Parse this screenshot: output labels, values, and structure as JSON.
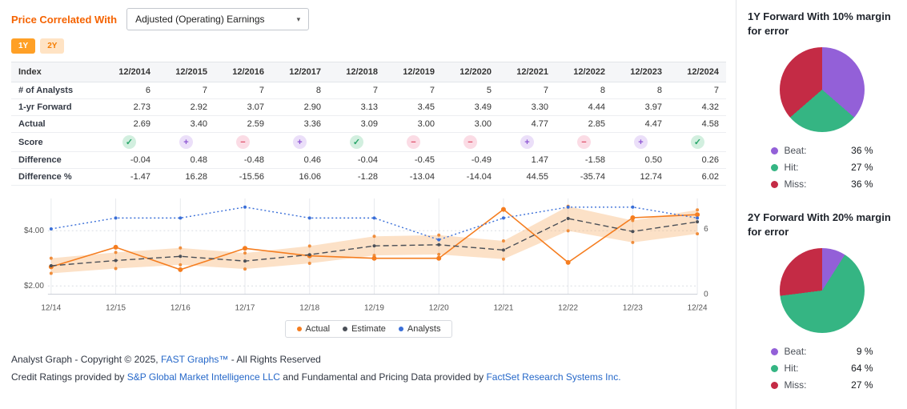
{
  "header": {
    "label": "Price Correlated With",
    "dropdown_value": "Adjusted (Operating) Earnings",
    "toggles": [
      {
        "label": "1Y",
        "active": true
      },
      {
        "label": "2Y",
        "active": false
      }
    ],
    "accent_color": "#f56301"
  },
  "table": {
    "index_header": "Index",
    "years": [
      "12/2014",
      "12/2015",
      "12/2016",
      "12/2017",
      "12/2018",
      "12/2019",
      "12/2020",
      "12/2021",
      "12/2022",
      "12/2023",
      "12/2024"
    ],
    "rows": {
      "analysts": {
        "label": "# of Analysts",
        "values": [
          "6",
          "7",
          "7",
          "8",
          "7",
          "7",
          "5",
          "7",
          "8",
          "8",
          "7"
        ]
      },
      "forward": {
        "label": "1-yr Forward",
        "values": [
          "2.73",
          "2.92",
          "3.07",
          "2.90",
          "3.13",
          "3.45",
          "3.49",
          "3.30",
          "4.44",
          "3.97",
          "4.32"
        ]
      },
      "actual": {
        "label": "Actual",
        "values": [
          "2.69",
          "3.40",
          "2.59",
          "3.36",
          "3.09",
          "3.00",
          "3.00",
          "4.77",
          "2.85",
          "4.47",
          "4.58"
        ]
      },
      "score": {
        "label": "Score",
        "icons": [
          "check",
          "plus",
          "minus",
          "plus",
          "check",
          "minus",
          "minus",
          "plus",
          "minus",
          "plus",
          "check"
        ]
      },
      "difference": {
        "label": "Difference",
        "colored": true,
        "values": [
          "-0.04",
          "0.48",
          "-0.48",
          "0.46",
          "-0.04",
          "-0.45",
          "-0.49",
          "1.47",
          "-1.58",
          "0.50",
          "0.26"
        ]
      },
      "difference_pct": {
        "label": "Difference %",
        "colored": true,
        "values": [
          "-1.47",
          "16.28",
          "-15.56",
          "16.06",
          "-1.28",
          "-13.04",
          "-14.04",
          "44.55",
          "-35.74",
          "12.74",
          "6.02"
        ]
      }
    },
    "positive_color": "#27a569",
    "negative_color": "#e0566a"
  },
  "chart_data": [
    {
      "type": "line",
      "x": [
        "12/14",
        "12/15",
        "12/16",
        "12/17",
        "12/18",
        "12/19",
        "12/20",
        "12/21",
        "12/22",
        "12/23",
        "12/24"
      ],
      "series": [
        {
          "name": "Actual",
          "axis": "left",
          "style": "solid",
          "color": "#f57d1f",
          "values": [
            2.69,
            3.4,
            2.59,
            3.36,
            3.09,
            3.0,
            3.0,
            4.77,
            2.85,
            4.47,
            4.58
          ]
        },
        {
          "name": "Estimate",
          "axis": "left",
          "style": "dashed",
          "color": "#4a4f57",
          "values": [
            2.73,
            2.92,
            3.07,
            2.9,
            3.13,
            3.45,
            3.49,
            3.3,
            4.44,
            3.97,
            4.32
          ]
        },
        {
          "name": "Analysts",
          "axis": "right",
          "style": "dotted",
          "color": "#3a6fd8",
          "values": [
            6,
            7,
            7,
            8,
            7,
            7,
            5,
            7,
            8,
            8,
            7
          ]
        }
      ],
      "band": {
        "follows": "Estimate",
        "margin_pct": 10,
        "color": "#f6a85e",
        "opacity": 0.35,
        "edge_dot_color": "#ef8d3c"
      },
      "left_axis": {
        "labels": [
          "$4.00",
          "$2.00"
        ],
        "values": [
          4,
          2
        ],
        "range": [
          1.7,
          5.05
        ]
      },
      "right_axis": {
        "labels": [
          "6",
          "0"
        ],
        "values": [
          6,
          0
        ],
        "range": [
          0,
          8.5
        ]
      },
      "grid": true,
      "legend": [
        "Actual",
        "Estimate",
        "Analysts"
      ],
      "legend_position": "bottom"
    },
    {
      "type": "pie",
      "title": "1Y Forward With 10% margin for error",
      "slices": [
        {
          "label": "Beat",
          "value": 36,
          "display": "36 %",
          "color": "#9360d8"
        },
        {
          "label": "Hit",
          "value": 27,
          "display": "27 %",
          "color": "#35b583"
        },
        {
          "label": "Miss",
          "value": 36,
          "display": "36 %",
          "color": "#c42b45"
        }
      ]
    },
    {
      "type": "pie",
      "title": "2Y Forward With 20% margin for error",
      "slices": [
        {
          "label": "Beat",
          "value": 9,
          "display": "9 %",
          "color": "#9360d8"
        },
        {
          "label": "Hit",
          "value": 64,
          "display": "64 %",
          "color": "#35b583"
        },
        {
          "label": "Miss",
          "value": 27,
          "display": "27 %",
          "color": "#c42b45"
        }
      ]
    }
  ],
  "footer": {
    "line1_pre": "Analyst Graph - Copyright © 2025, ",
    "line1_link": "FAST Graphs™",
    "line1_post": " - All Rights Reserved",
    "line2_pre": "Credit Ratings provided by ",
    "line2_link1": "S&P Global Market Intelligence LLC",
    "line2_mid": " and Fundamental and Pricing Data provided by ",
    "line2_link2": "FactSet Research Systems Inc."
  }
}
